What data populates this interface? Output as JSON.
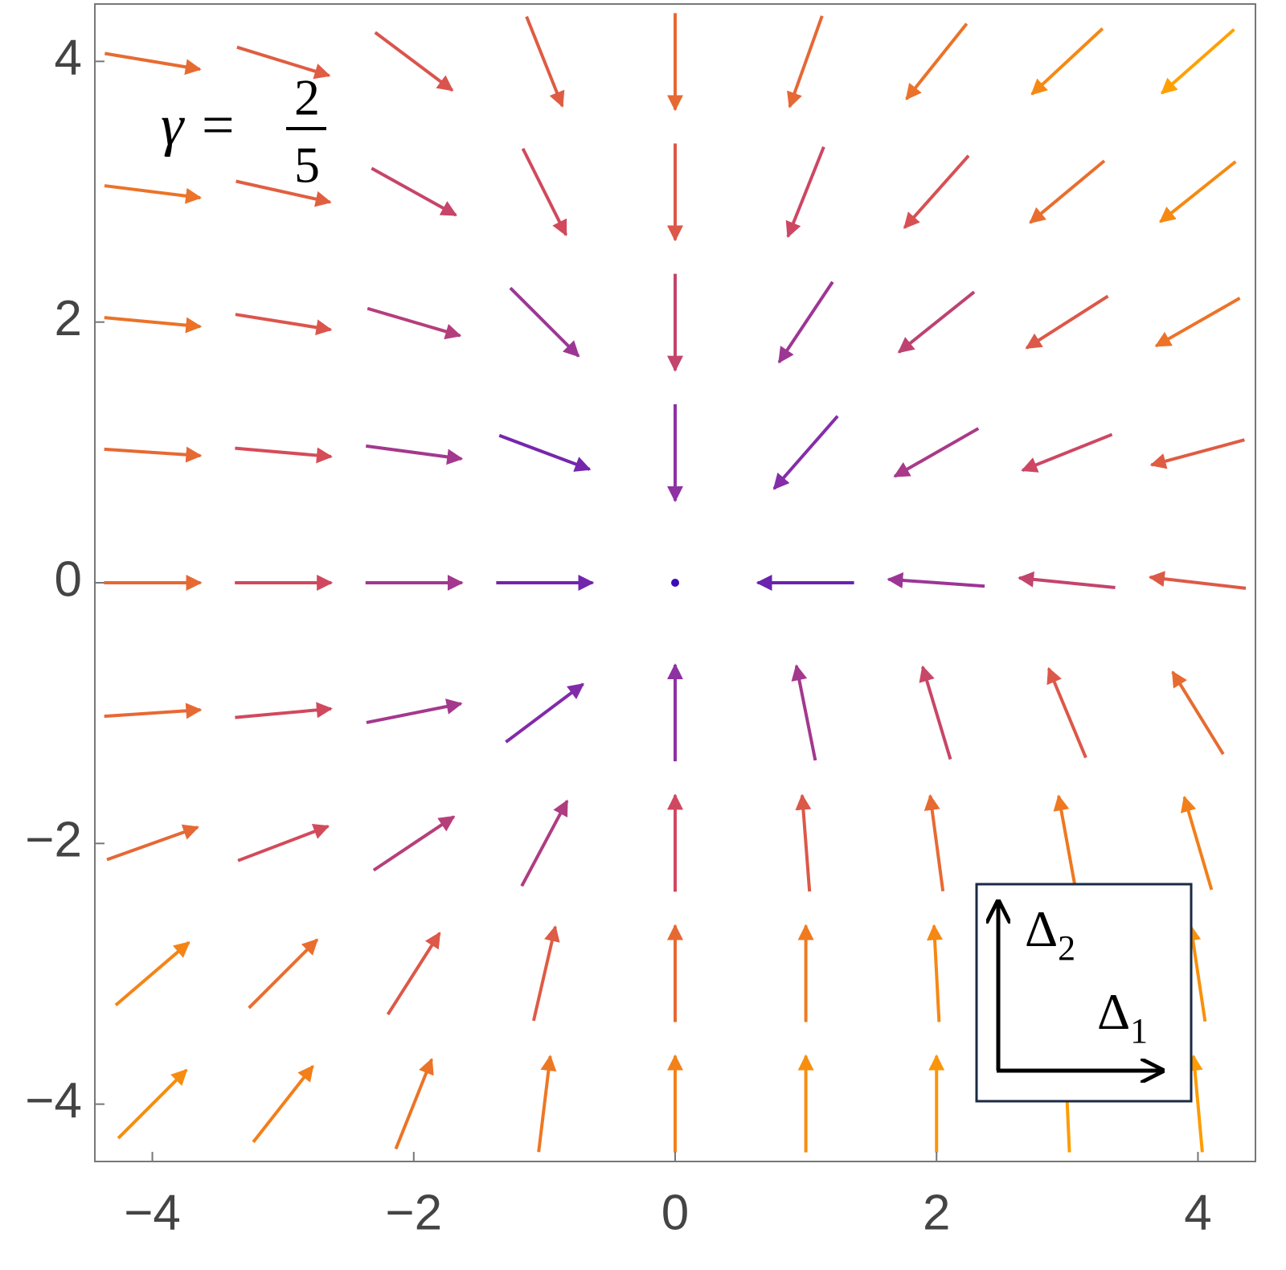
{
  "chart_data": {
    "type": "vectorfield",
    "xlim": [
      -4.44,
      4.44
    ],
    "ylim": [
      -4.44,
      4.44
    ],
    "xticks": [
      {
        "value": -4,
        "label": "−4"
      },
      {
        "value": -2,
        "label": "−2"
      },
      0,
      2,
      4
    ],
    "yticks": [
      {
        "value": -4,
        "label": "−4"
      },
      {
        "value": -2,
        "label": "−2"
      },
      0,
      2,
      4
    ],
    "colormap": [
      "#3a0cb8",
      "#8a2fa8",
      "#d44a5a",
      "#f07a1e",
      "#ffa000"
    ],
    "annotation": {
      "lhs": "γ =",
      "numerator": "2",
      "denominator": "5"
    },
    "inset_labels": [
      {
        "symbol": "Δ",
        "sub": "2"
      },
      {
        "symbol": "Δ",
        "sub": "1"
      }
    ],
    "x": [
      -4,
      -3,
      -2,
      -1,
      0,
      1,
      2,
      3,
      4
    ],
    "y": [
      4,
      3,
      2,
      1,
      0,
      -1,
      -2,
      -3,
      -4
    ],
    "u": [
      [
        3,
        2.6,
        2,
        1,
        0,
        -1,
        -2,
        -2.8,
        -3.4
      ],
      [
        3.2,
        2.7,
        1.8,
        1,
        0,
        -0.8,
        -1.6,
        -2.4,
        -3
      ],
      [
        3.2,
        2.5,
        1.7,
        1,
        0,
        -0.8,
        -1.5,
        -2.2,
        -2.8
      ],
      [
        3,
        2.3,
        1.5,
        0.8,
        0,
        -0.7,
        -1.4,
        -2,
        -2.6
      ],
      [
        3,
        2.2,
        1.5,
        0.8,
        0,
        -0.7,
        -1.4,
        -2,
        -2.6
      ],
      [
        3,
        2.2,
        1.5,
        0.8,
        0,
        -0.3,
        -0.6,
        -1,
        -1.6
      ],
      [
        2.8,
        2.1,
        1.5,
        0.8,
        0,
        -0.2,
        -0.4,
        -0.6,
        -1
      ],
      [
        2.8,
        2.2,
        1.4,
        0.6,
        0,
        0,
        -0.2,
        -0.3,
        -0.6
      ],
      [
        2.8,
        2.2,
        1.2,
        0.4,
        0,
        0,
        0,
        -0.2,
        -0.4
      ]
    ],
    "v": [
      [
        -0.5,
        -0.8,
        -1.5,
        -2.5,
        -3,
        -2.8,
        -2.5,
        -2.6,
        -3
      ],
      [
        -0.4,
        -0.6,
        -1,
        -2,
        -2.6,
        -2,
        -1.8,
        -2,
        -2.4
      ],
      [
        -0.3,
        -0.4,
        -0.5,
        -1,
        -2,
        -1.2,
        -1.2,
        -1.4,
        -1.6
      ],
      [
        -0.2,
        -0.2,
        -0.2,
        -0.3,
        -1.2,
        -0.8,
        -0.8,
        -0.8,
        -0.7
      ],
      [
        0,
        0,
        0,
        0,
        0,
        0,
        0.1,
        0.2,
        0.3
      ],
      [
        0.2,
        0.2,
        0.3,
        0.6,
        1.2,
        1.5,
        2,
        2.4,
        2.6
      ],
      [
        1,
        0.8,
        1,
        1.5,
        2.2,
        2.6,
        3,
        3.3,
        3.4
      ],
      [
        2.4,
        2.2,
        2.2,
        2.6,
        3,
        3.4,
        3.8,
        4,
        4
      ],
      [
        2.8,
        2.8,
        3,
        3.3,
        3.6,
        4,
        4.2,
        4.4,
        4.4
      ]
    ]
  }
}
